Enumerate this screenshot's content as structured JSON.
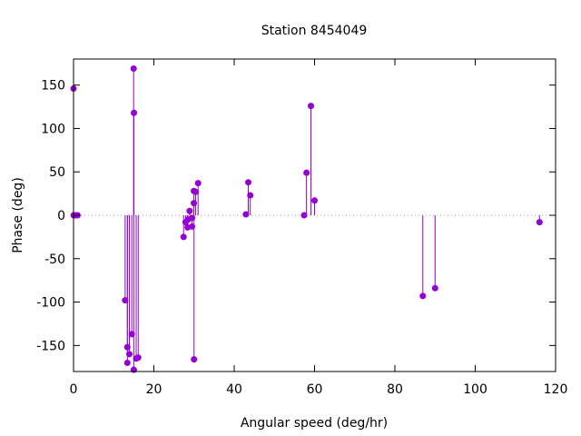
{
  "chart_data": {
    "type": "scatter",
    "style": "impulses-with-points",
    "title": "Station 8454049",
    "xlabel": "Angular speed (deg/hr)",
    "ylabel": "Phase (deg)",
    "xlim": [
      0,
      120
    ],
    "ylim": [
      -180,
      180
    ],
    "xticks": [
      0,
      20,
      40,
      60,
      80,
      100,
      120
    ],
    "yticks": [
      -150,
      -100,
      -50,
      0,
      50,
      100,
      150
    ],
    "grid": false,
    "zero_line": "dotted",
    "color": "#9400d3",
    "series": [
      {
        "points": [
          {
            "x": 0.0,
            "y": 146
          },
          {
            "x": 0.04,
            "y": 0
          },
          {
            "x": 0.08,
            "y": 0
          },
          {
            "x": 0.5,
            "y": 0
          },
          {
            "x": 1.0,
            "y": 0
          },
          {
            "x": 12.85,
            "y": -98
          },
          {
            "x": 13.4,
            "y": -170
          },
          {
            "x": 13.4,
            "y": -152
          },
          {
            "x": 13.9,
            "y": -160
          },
          {
            "x": 14.5,
            "y": -137
          },
          {
            "x": 14.96,
            "y": 169
          },
          {
            "x": 15.04,
            "y": 118
          },
          {
            "x": 15.0,
            "y": -178
          },
          {
            "x": 15.6,
            "y": -165
          },
          {
            "x": 16.1,
            "y": -164
          },
          {
            "x": 27.4,
            "y": -25
          },
          {
            "x": 27.9,
            "y": -8
          },
          {
            "x": 28.4,
            "y": -14
          },
          {
            "x": 28.5,
            "y": -5
          },
          {
            "x": 28.9,
            "y": 5
          },
          {
            "x": 29.5,
            "y": -3
          },
          {
            "x": 29.5,
            "y": -13
          },
          {
            "x": 29.96,
            "y": 28
          },
          {
            "x": 29.96,
            "y": 14
          },
          {
            "x": 30.0,
            "y": -166
          },
          {
            "x": 30.4,
            "y": 27
          },
          {
            "x": 31.0,
            "y": 37
          },
          {
            "x": 42.9,
            "y": 1
          },
          {
            "x": 43.5,
            "y": 38
          },
          {
            "x": 44.0,
            "y": 23
          },
          {
            "x": 57.4,
            "y": 0
          },
          {
            "x": 58.0,
            "y": 49
          },
          {
            "x": 59.1,
            "y": 126
          },
          {
            "x": 60.0,
            "y": 17
          },
          {
            "x": 86.95,
            "y": -93
          },
          {
            "x": 90.0,
            "y": -84
          },
          {
            "x": 116.0,
            "y": -8
          }
        ]
      }
    ]
  }
}
